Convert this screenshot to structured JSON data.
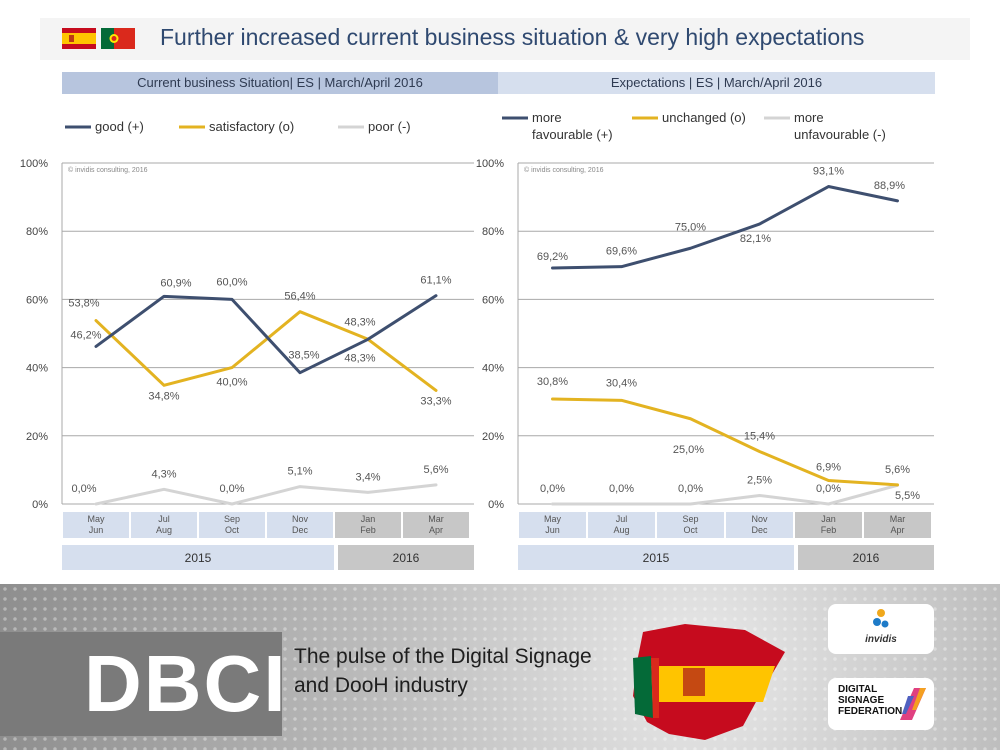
{
  "title": "Further increased current business situation & very high expectations",
  "flags": [
    {
      "name": "Spain",
      "colors": [
        "#c60b1e",
        "#ffc400"
      ]
    },
    {
      "name": "Portugal",
      "colors": [
        "#046a38",
        "#da291c"
      ]
    }
  ],
  "chart_data": [
    {
      "type": "line",
      "title": "Current business Situation| ES | March/April 2016",
      "watermark": "© invidis consulting, 2016",
      "categories": [
        "May Jun",
        "Jul Aug",
        "Sep Oct",
        "Nov Dec",
        "Jan Feb",
        "Mar Apr"
      ],
      "category_lines": [
        [
          "May",
          "Jun"
        ],
        [
          "Jul",
          "Aug"
        ],
        [
          "Sep",
          "Oct"
        ],
        [
          "Nov",
          "Dec"
        ],
        [
          "Jan",
          "Feb"
        ],
        [
          "Mar",
          "Apr"
        ]
      ],
      "years": [
        {
          "label": "2015",
          "span": [
            0,
            3
          ]
        },
        {
          "label": "2016",
          "span": [
            4,
            5
          ]
        }
      ],
      "yticks": [
        "0%",
        "20%",
        "40%",
        "60%",
        "80%",
        "100%"
      ],
      "ylim": [
        0,
        100
      ],
      "series": [
        {
          "name": "good (+)",
          "color": "#3e4f6f",
          "values": [
            46.2,
            60.9,
            60.0,
            38.5,
            48.3,
            61.1
          ],
          "labels": [
            "46,2%",
            "60,9%",
            "60,0%",
            "38,5%",
            "48,3%",
            "61,1%"
          ]
        },
        {
          "name": "satisfactory (o)",
          "color": "#e3b321",
          "values": [
            53.8,
            34.8,
            40.0,
            56.4,
            48.3,
            33.3
          ],
          "labels": [
            "53,8%",
            "34,8%",
            "40,0%",
            "56,4%",
            "48,3%",
            "33,3%"
          ]
        },
        {
          "name": "poor (-)",
          "color": "#d4d4d4",
          "values": [
            0.0,
            4.3,
            0.0,
            5.1,
            3.4,
            5.6
          ],
          "labels": [
            "0,0%",
            "4,3%",
            "0,0%",
            "5,1%",
            "3,4%",
            "5,6%"
          ]
        }
      ]
    },
    {
      "type": "line",
      "title": "Expectations | ES | March/April 2016",
      "watermark": "© invidis consulting, 2016",
      "categories": [
        "May Jun",
        "Jul Aug",
        "Sep Oct",
        "Nov Dec",
        "Jan Feb",
        "Mar Apr"
      ],
      "category_lines": [
        [
          "May",
          "Jun"
        ],
        [
          "Jul",
          "Aug"
        ],
        [
          "Sep",
          "Oct"
        ],
        [
          "Nov",
          "Dec"
        ],
        [
          "Jan",
          "Feb"
        ],
        [
          "Mar",
          "Apr"
        ]
      ],
      "years": [
        {
          "label": "2015",
          "span": [
            0,
            3
          ]
        },
        {
          "label": "2016",
          "span": [
            4,
            5
          ]
        }
      ],
      "yticks": [
        "0%",
        "20%",
        "40%",
        "60%",
        "80%",
        "100%"
      ],
      "ylim": [
        0,
        100
      ],
      "series": [
        {
          "name": "more favourable (+)",
          "legend_lines": [
            "more",
            "favourable (+)"
          ],
          "color": "#3e4f6f",
          "values": [
            69.2,
            69.6,
            75.0,
            82.1,
            93.1,
            88.9
          ],
          "labels": [
            "69,2%",
            "69,6%",
            "75,0%",
            "82,1%",
            "93,1%",
            "88,9%"
          ]
        },
        {
          "name": "unchanged (o)",
          "legend_lines": [
            "unchanged (o)"
          ],
          "color": "#e3b321",
          "values": [
            30.8,
            30.4,
            25.0,
            15.4,
            6.9,
            5.6
          ],
          "labels": [
            "30,8%",
            "30,4%",
            "25,0%",
            "15,4%",
            "6,9%",
            "5,6%"
          ]
        },
        {
          "name": "more unfavourable (-)",
          "legend_lines": [
            "more",
            "unfavourable (-)"
          ],
          "color": "#d4d4d4",
          "values": [
            0.0,
            0.0,
            0.0,
            2.5,
            0.0,
            5.5
          ],
          "labels": [
            "0,0%",
            "0,0%",
            "0,0%",
            "2,5%",
            "0,0%",
            "5,5%"
          ]
        }
      ]
    }
  ],
  "footer": {
    "brand": "DBCI",
    "tagline_line1": "The pulse of the Digital Signage",
    "tagline_line2": "and DooH industry",
    "logo_invidis": "invidis",
    "logo_dsf_line1": "DIGITAL",
    "logo_dsf_line2": "SIGNAGE",
    "logo_dsf_line3": "FEDERATION"
  }
}
